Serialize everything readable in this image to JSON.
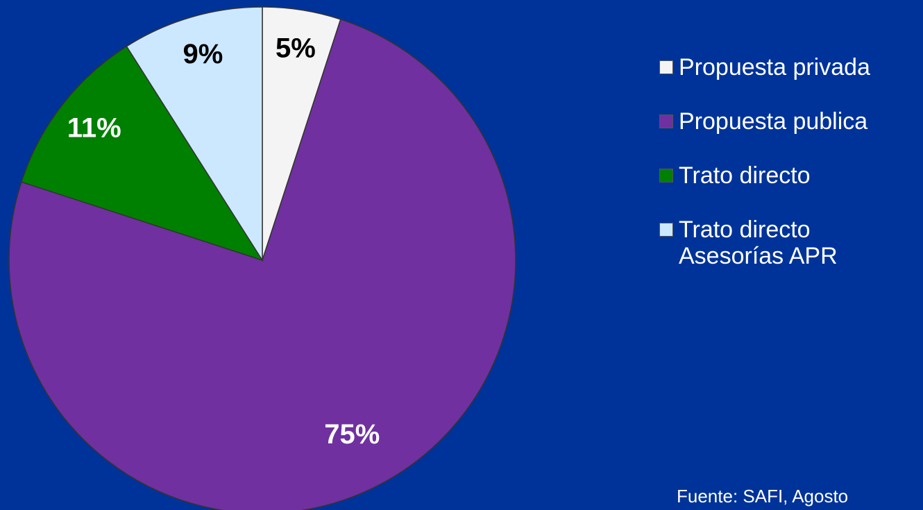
{
  "chart_data": {
    "type": "pie",
    "categories": [
      "Propuesta privada",
      "Propuesta publica",
      "Trato directo",
      "Trato directo Asesorías APR"
    ],
    "values": [
      5,
      75,
      11,
      9
    ],
    "value_labels": [
      "5%",
      "75%",
      "11%",
      "9%"
    ],
    "colors": [
      "#f4f4f4",
      "#7030a0",
      "#008000",
      "#cce8ff"
    ],
    "legend": "right",
    "source": "Fuente: SAFI, Agosto"
  }
}
